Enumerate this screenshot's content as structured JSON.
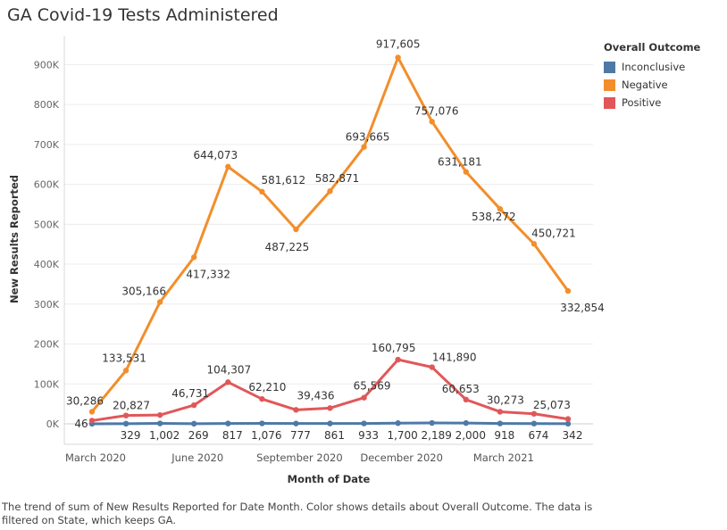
{
  "title": "GA Covid-19 Tests Administered",
  "caption": "The trend of sum of New Results Reported for Date Month.  Color shows details about Overall Outcome. The data is filtered on State, which keeps GA.",
  "legend": {
    "title": "Overall Outcome",
    "items": [
      {
        "label": "Inconclusive",
        "color": "#4e79a7"
      },
      {
        "label": "Negative",
        "color": "#f28e2b"
      },
      {
        "label": "Positive",
        "color": "#e15759"
      }
    ]
  },
  "chart_data": {
    "type": "line",
    "title": "GA Covid-19 Tests Administered",
    "xlabel": "Month of Date",
    "ylabel": "New Results Reported",
    "ylim": [
      0,
      950000
    ],
    "yticks": [
      0,
      100000,
      200000,
      300000,
      400000,
      500000,
      600000,
      700000,
      800000,
      900000
    ],
    "ytick_labels": [
      "0K",
      "100K",
      "200K",
      "300K",
      "400K",
      "500K",
      "600K",
      "700K",
      "800K",
      "900K"
    ],
    "x": [
      "2020-03",
      "2020-04",
      "2020-05",
      "2020-06",
      "2020-07",
      "2020-08",
      "2020-09",
      "2020-10",
      "2020-11",
      "2020-12",
      "2021-01",
      "2021-02",
      "2021-03",
      "2021-04",
      "2021-05"
    ],
    "xtick_labels": [
      "March 2020",
      "June 2020",
      "September 2020",
      "December 2020",
      "March 2021"
    ],
    "xtick_months": [
      "2020-03",
      "2020-06",
      "2020-09",
      "2020-12",
      "2021-03"
    ],
    "grid": true,
    "legend_position": "right",
    "series": [
      {
        "name": "Negative",
        "color": "#f28e2b",
        "values": [
          30286,
          133531,
          305166,
          417332,
          644073,
          581612,
          487225,
          582871,
          693665,
          917605,
          757076,
          631181,
          538272,
          450721,
          332854
        ],
        "labels": [
          "30,286",
          "133,531",
          "305,166",
          "417,332",
          "644,073",
          "581,612",
          "487,225",
          "582,871",
          "693,665",
          "917,605",
          "757,076",
          "631,181",
          "538,272",
          "450,721",
          "332,854"
        ]
      },
      {
        "name": "Positive",
        "color": "#e15759",
        "values": [
          8000,
          20827,
          22000,
          46731,
          104307,
          62210,
          35000,
          39436,
          65569,
          160795,
          141890,
          60653,
          30273,
          25073,
          12000
        ],
        "labels": [
          "",
          "20,827",
          "",
          "46,731",
          "104,307",
          "62,210",
          "",
          "39,436",
          "65,569",
          "160,795",
          "141,890",
          "60,653",
          "30,273",
          "25,073",
          ""
        ]
      },
      {
        "name": "Inconclusive",
        "color": "#4e79a7",
        "values": [
          46,
          329,
          1002,
          269,
          817,
          1076,
          777,
          861,
          933,
          1700,
          2189,
          2000,
          918,
          674,
          342
        ],
        "labels": [
          "46",
          "329",
          "1,002",
          "269",
          "817",
          "1,076",
          "777",
          "861",
          "933",
          "1,700",
          "2,189",
          "2,000",
          "918",
          "674",
          "342"
        ]
      }
    ]
  }
}
